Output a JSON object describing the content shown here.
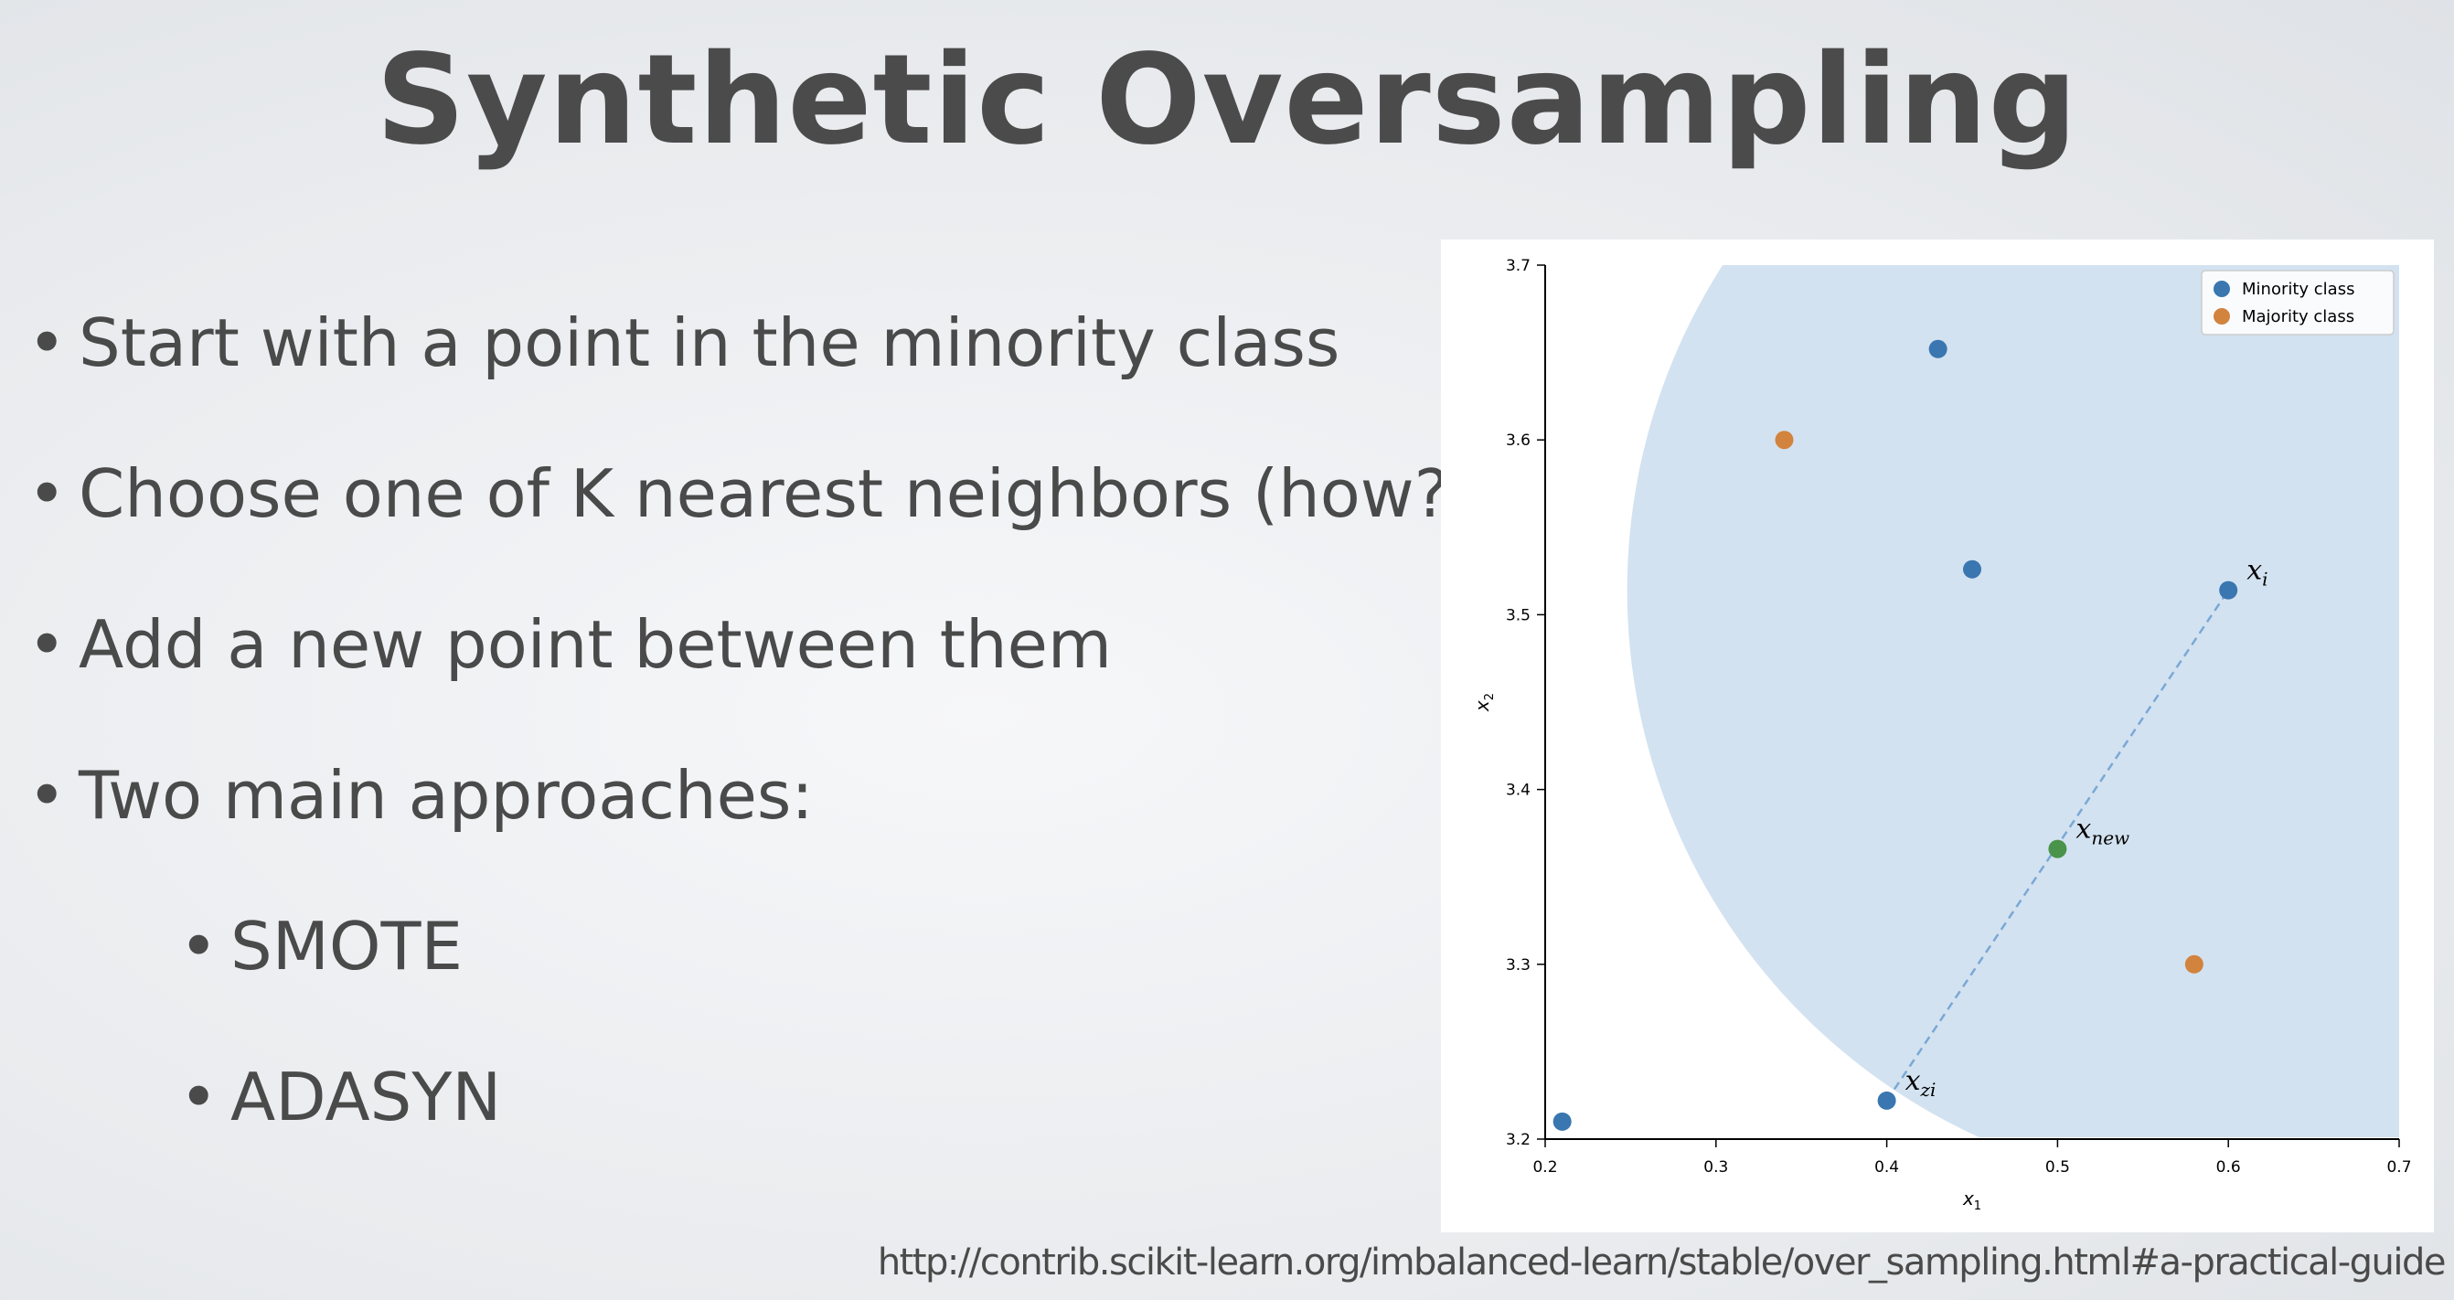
{
  "slide": {
    "title": "Synthetic Oversampling",
    "bullets": [
      {
        "text": "Start with a point in the minority class",
        "level": 1
      },
      {
        "text": "Choose one of K nearest neighbors (how?)",
        "level": 1
      },
      {
        "text": "Add a new point between them",
        "level": 1
      },
      {
        "text": "Two main approaches:",
        "level": 1
      },
      {
        "text": "SMOTE",
        "level": 2
      },
      {
        "text": "ADASYN",
        "level": 2
      }
    ],
    "bullet_glyph": "•",
    "source_url": "http://contrib.scikit-learn.org/imbalanced-learn/stable/over_sampling.html#a-practical-guide"
  },
  "chart_data": {
    "type": "scatter",
    "title": "",
    "xlabel": "x1",
    "ylabel": "x2",
    "xlim": [
      0.2,
      0.7
    ],
    "ylim": [
      3.2,
      3.7
    ],
    "xticks": [
      "0.2",
      "0.3",
      "0.4",
      "0.5",
      "0.6",
      "0.7"
    ],
    "yticks": [
      "3.2",
      "3.3",
      "3.4",
      "3.5",
      "3.6",
      "3.7"
    ],
    "grid": false,
    "legend": {
      "placement": "top-right",
      "entries": [
        "Minority class",
        "Majority class"
      ]
    },
    "series": [
      {
        "name": "Minority class",
        "color": "#3a76b0",
        "points": [
          [
            0.43,
            3.652
          ],
          [
            0.45,
            3.526
          ],
          [
            0.6,
            3.514
          ],
          [
            0.4,
            3.222
          ],
          [
            0.21,
            3.21
          ]
        ]
      },
      {
        "name": "Majority class",
        "color": "#d2833e",
        "points": [
          [
            0.34,
            3.6
          ],
          [
            0.58,
            3.3
          ]
        ]
      }
    ],
    "new_point": {
      "x": 0.5,
      "y": 3.366,
      "color": "#4a934a"
    },
    "segment": {
      "from": [
        0.4,
        3.222
      ],
      "to": [
        0.6,
        3.514
      ],
      "style": "dashed",
      "color": "#7aa8d6"
    },
    "neighborhood": {
      "shape": "circle",
      "center": [
        0.6,
        3.514
      ],
      "radius_x_units": 0.352,
      "fill": "#d3e2f0"
    },
    "annotations": [
      {
        "text": "x",
        "sub": "i",
        "at": [
          0.6,
          3.514
        ]
      },
      {
        "text": "x",
        "sub": "new",
        "at": [
          0.5,
          3.366
        ]
      },
      {
        "text": "x",
        "sub": "zi",
        "at": [
          0.4,
          3.222
        ]
      }
    ]
  }
}
